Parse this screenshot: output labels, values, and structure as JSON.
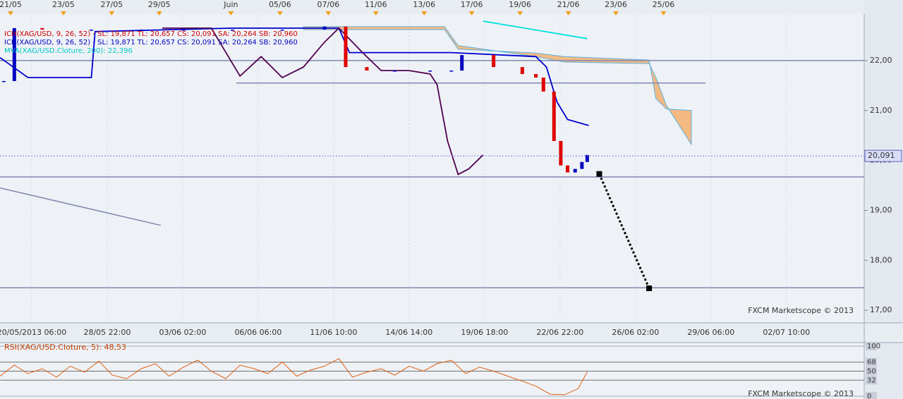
{
  "chart_data": [
    {
      "type": "candlestick",
      "legend": [
        {
          "text": "ICH(XAG/USD, 9, 26, 52) - SL: 19,871  TL: 20,657  CS: 20,091  SA: 20,264  SB: 20,960",
          "color": "#d00000"
        },
        {
          "text": "ICH(XAG/USD, 9, 26, 52) - SL: 19,871  TL: 20,657  CS: 20,091  SA: 20,264  SB: 20,960",
          "color": "#0000c0"
        },
        {
          "text": "MVA(XAG/USD.Cloture, 200): 22,396",
          "color": "#00c8c8"
        }
      ],
      "watermark": "FXCM Marketscope © 2013",
      "xlim": [
        -0.42,
        11.03
      ],
      "ylim": [
        16.79,
        22.86
      ],
      "xticks": [
        {
          "value": 0,
          "label": "20/05/2013 06:00"
        },
        {
          "value": 1,
          "label": "28/05 22:00"
        },
        {
          "value": 2,
          "label": "03/06 02:00"
        },
        {
          "value": 3,
          "label": "06/06 06:00"
        },
        {
          "value": 4,
          "label": "11/06 10:00"
        },
        {
          "value": 5,
          "label": "14/06 14:00"
        },
        {
          "value": 6,
          "label": "19/06 18:00"
        },
        {
          "value": 7,
          "label": "22/06 22:00"
        },
        {
          "value": 8,
          "label": "26/06 02:00"
        },
        {
          "value": 9,
          "label": "29/06 06:00"
        },
        {
          "value": 10,
          "label": "02/07 10:00"
        }
      ],
      "x2ticks": [
        {
          "value": -0.28,
          "label": "21/05"
        },
        {
          "value": 0.42,
          "label": "23/05"
        },
        {
          "value": 1.06,
          "label": "27/05"
        },
        {
          "value": 1.69,
          "label": "29/05"
        },
        {
          "value": 2.64,
          "label": "Juin"
        },
        {
          "value": 3.29,
          "label": "05/06"
        },
        {
          "value": 3.93,
          "label": "07/06"
        },
        {
          "value": 4.56,
          "label": "11/06"
        },
        {
          "value": 5.2,
          "label": "13/06"
        },
        {
          "value": 5.83,
          "label": "17/06"
        },
        {
          "value": 6.47,
          "label": "19/06"
        },
        {
          "value": 7.11,
          "label": "21/06"
        },
        {
          "value": 7.74,
          "label": "23/06"
        },
        {
          "value": 8.37,
          "label": "25/06"
        }
      ],
      "yticks": [
        {
          "value": 17,
          "label": "17,00"
        },
        {
          "value": 18,
          "label": "18,00"
        },
        {
          "value": 19,
          "label": "19,00"
        },
        {
          "value": 20,
          "label": "20,00"
        },
        {
          "value": 21,
          "label": "21,00"
        },
        {
          "value": 22,
          "label": "22,00"
        }
      ],
      "price_label": {
        "value": 20.091,
        "label": "20,091"
      },
      "up_color": "#0000c0",
      "down_color": "#e00000",
      "x": [
        -0.37,
        -0.23,
        0.14,
        0.79,
        1.45,
        2.01,
        2.66,
        3.32,
        3.88,
        4.16,
        4.44,
        4.81,
        5.28,
        5.56,
        5.7,
        6.12,
        6.5,
        6.68,
        6.78,
        6.92,
        7.01,
        7.1,
        7.2,
        7.29,
        7.36
      ],
      "values": [
        21.59,
        22.65,
        22.62,
        22.62,
        22.62,
        22.62,
        22.62,
        22.62,
        22.68,
        21.87,
        21.8,
        21.8,
        21.8,
        21.8,
        22.11,
        21.87,
        21.73,
        21.66,
        21.38,
        20.39,
        19.9,
        19.76,
        19.83,
        19.97,
        20.11
      ],
      "series": [
        {
          "color": "#0000d0",
          "x": [
            -0.42,
            -0.05,
            0.79,
            0.84,
            2.66,
            4.07,
            4.21,
            5.56,
            6.68,
            6.82,
            6.96,
            7.1,
            7.38
          ],
          "values": [
            22.06,
            21.66,
            21.66,
            22.58,
            22.65,
            22.65,
            22.16,
            22.16,
            22.08,
            21.87,
            21.17,
            20.82,
            20.7
          ]
        },
        {
          "color": "#500050",
          "x": [
            1.73,
            2.38,
            2.76,
            3.04,
            3.32,
            3.6,
            3.88,
            4.07,
            4.25,
            4.39,
            4.63,
            5.0,
            5.28,
            5.37,
            5.51,
            5.65,
            5.79,
            5.98
          ],
          "values": [
            22.65,
            22.65,
            21.69,
            22.08,
            21.66,
            21.87,
            22.37,
            22.65,
            22.37,
            22.15,
            21.8,
            21.8,
            21.73,
            21.52,
            20.39,
            19.72,
            19.83,
            20.11
          ]
        },
        {
          "color": "#00e0e0",
          "x": [
            5.98,
            7.36
          ],
          "values": [
            22.79,
            22.44
          ]
        }
      ],
      "cloud": {
        "color": "#f4b070",
        "x": [
          3.6,
          5.47,
          5.65,
          6.68,
          7.06,
          8.18,
          8.27,
          8.41,
          8.74
        ],
        "span_a": [
          22.62,
          22.62,
          22.23,
          22.15,
          22.08,
          22.01,
          21.24,
          21.03,
          21.0
        ],
        "span_b": [
          22.68,
          22.68,
          22.3,
          22.08,
          21.97,
          21.94,
          21.66,
          21.1,
          20.32
        ]
      },
      "drawings": [
        {
          "x": [
            -0.42,
            11.03
          ],
          "values": [
            22,
            22
          ],
          "color": "#8088b0",
          "style": "solid"
        },
        {
          "x": [
            2.71,
            8.93
          ],
          "values": [
            21.55,
            21.55
          ],
          "color": "#8088b0",
          "style": "solid"
        },
        {
          "x": [
            -0.42,
            11.03
          ],
          "values": [
            19.67,
            19.67
          ],
          "color": "#8088b0",
          "style": "solid"
        },
        {
          "x": [
            -0.42,
            11.03
          ],
          "values": [
            17.45,
            17.45
          ],
          "color": "#8088b0",
          "style": "solid"
        },
        {
          "x": [
            -0.42,
            1.71
          ],
          "values": [
            19.45,
            18.7
          ],
          "color": "#8088b0",
          "style": "solid"
        },
        {
          "x": [
            7.52,
            8.18
          ],
          "values": [
            19.73,
            17.44
          ],
          "color": "#000000",
          "style": "dotted"
        }
      ]
    },
    {
      "type": "line",
      "title": "RSI(XAG/USD.Cloture, 5): 48,53",
      "watermark": "FXCM Marketscope © 2013",
      "xlim": [
        -0.42,
        11.03
      ],
      "ylim": [
        0,
        100
      ],
      "yticks": [
        0,
        32,
        50,
        68,
        100
      ],
      "color": "#e06010",
      "x": [
        -0.42,
        -0.23,
        -0.05,
        0.14,
        0.33,
        0.51,
        0.7,
        0.89,
        1.07,
        1.26,
        1.45,
        1.64,
        1.82,
        2.01,
        2.2,
        2.38,
        2.57,
        2.76,
        2.95,
        3.13,
        3.32,
        3.51,
        3.69,
        3.88,
        4.07,
        4.25,
        4.44,
        4.63,
        4.81,
        5.0,
        5.19,
        5.37,
        5.56,
        5.75,
        5.93,
        6.12,
        6.31,
        6.5,
        6.68,
        6.87,
        7.06,
        7.24,
        7.36
      ],
      "values": [
        40,
        62,
        45,
        55,
        38,
        60,
        48,
        70,
        42,
        35,
        55,
        65,
        40,
        58,
        72,
        50,
        35,
        62,
        55,
        45,
        68,
        40,
        52,
        60,
        75,
        38,
        48,
        55,
        42,
        60,
        50,
        65,
        72,
        45,
        58,
        50,
        40,
        30,
        20,
        4,
        3,
        15,
        48.53
      ]
    }
  ]
}
